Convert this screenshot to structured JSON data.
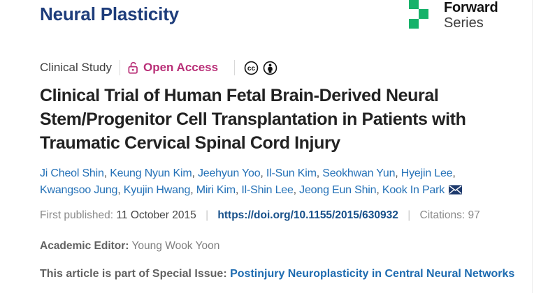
{
  "journal": {
    "title": "Neural Plasticity"
  },
  "logo": {
    "line1": "Forward",
    "line2": "Series",
    "green": "#17b26a"
  },
  "meta": {
    "article_type": "Clinical Study",
    "open_access_label": "Open Access",
    "open_access_color": "#b93078",
    "license_icons": [
      "cc-icon",
      "by-attribution-icon"
    ]
  },
  "article": {
    "full_title": "Clinical Trial of Human Fetal Brain-Derived Neural Stem/Progenitor Cell Transplantation in Patients with Traumatic Cervical Spinal Cord Injury",
    "title_lines": [
      "Clinical Trial of Human Fetal Brain-Derived Neural",
      "Stem/Progenitor Cell Transplantation in Patients with",
      "Traumatic Cervical Spinal Cord Injury"
    ]
  },
  "authors": {
    "separator": ", ",
    "lines": [
      [
        "Ji Cheol Shin",
        "Keung Nyun Kim",
        "Jeehyun Yoo",
        "Il-Sun Kim",
        "Seokhwan Yun",
        "Hyejin Lee"
      ],
      [
        "Kwangsoo Jung",
        "Kyujin Hwang",
        "Miri Kim",
        "Il-Shin Lee",
        "Jeong Eun Shin",
        "Kook In Park"
      ]
    ],
    "corresponding_icon": "envelope-icon",
    "link_color": "#2471b7"
  },
  "publication": {
    "first_published_label": "First published:",
    "date": "11 October 2015",
    "divider": "|",
    "doi": "https://doi.org/10.1155/2015/630932",
    "citations_label": "Citations:",
    "citations_count": "97"
  },
  "editor": {
    "label": "Academic Editor:",
    "name": "Young Wook Yoon"
  },
  "special_issue": {
    "label": "This article is part of Special Issue:",
    "title": "Postinjury Neuroplasticity in Central Neural Networks"
  },
  "colors": {
    "journal_blue": "#1e3d7b",
    "accent_pink": "#b93078",
    "link_blue": "#2471b7",
    "doi_blue": "#17508a"
  }
}
